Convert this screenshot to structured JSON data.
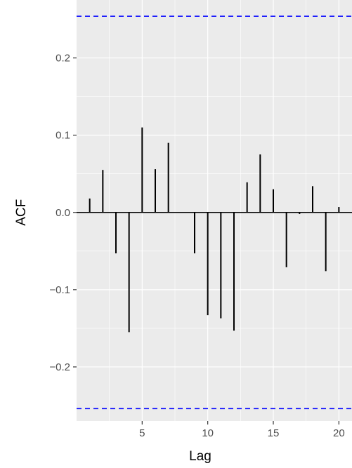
{
  "chart_data": {
    "type": "bar",
    "xlabel": "Lag",
    "ylabel": "ACF",
    "xlim": [
      0,
      21
    ],
    "ylim": [
      -0.27,
      0.275
    ],
    "x_ticks": [
      5,
      10,
      15,
      20
    ],
    "y_ticks": [
      -0.2,
      -0.1,
      0.0,
      0.1,
      0.2
    ],
    "y_tick_labels": [
      "−0.2",
      "−0.1",
      "0.0",
      "0.1",
      "0.2"
    ],
    "x": [
      1,
      2,
      3,
      4,
      5,
      6,
      7,
      8,
      9,
      10,
      11,
      12,
      13,
      14,
      15,
      16,
      17,
      18,
      19,
      20
    ],
    "values": [
      0.018,
      0.055,
      -0.053,
      -0.155,
      0.11,
      0.056,
      0.09,
      0.0,
      -0.053,
      -0.133,
      -0.137,
      -0.153,
      0.039,
      0.075,
      0.03,
      -0.071,
      -0.002,
      0.034,
      -0.076,
      0.007
    ],
    "confidence_bounds": [
      0.254,
      -0.254
    ],
    "grid": true,
    "colors": {
      "panel": "#ebebeb",
      "grid": "#ffffff",
      "bars": "#000000",
      "bounds": "#0000ff"
    }
  }
}
